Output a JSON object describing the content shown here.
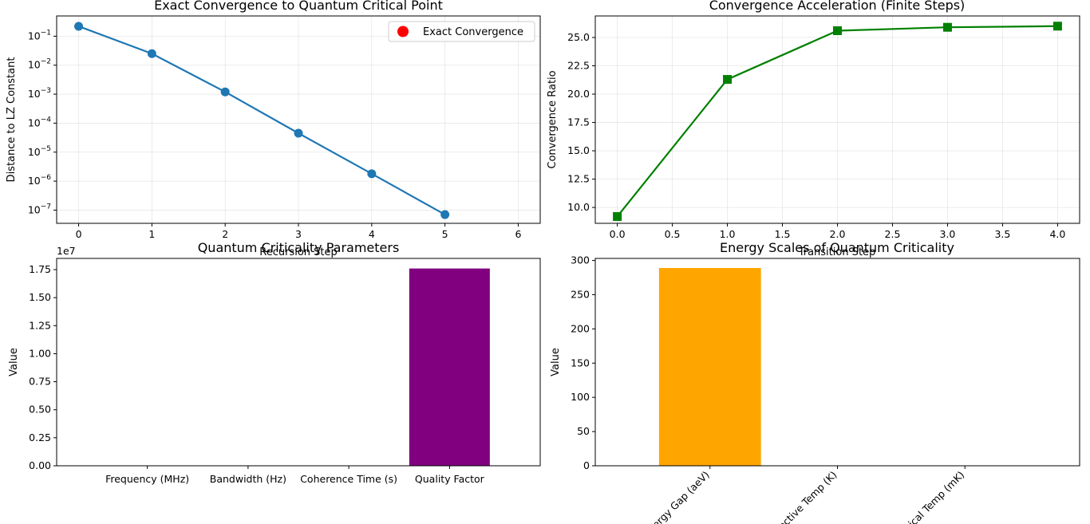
{
  "chart_data": [
    {
      "type": "line",
      "title": "Exact Convergence to Quantum Critical Point",
      "xlabel": "Recursion Step",
      "ylabel": "Distance to LZ Constant",
      "yscale": "log",
      "xlim": [
        -0.3,
        6.3
      ],
      "ylim": [
        3.5e-08,
        0.5
      ],
      "xticks": [
        0,
        1,
        2,
        3,
        4,
        5,
        6
      ],
      "yticks": [
        {
          "v": 1e-07,
          "e": "−7"
        },
        {
          "v": 1e-06,
          "e": "−6"
        },
        {
          "v": 1e-05,
          "e": "−5"
        },
        {
          "v": 0.0001,
          "e": "−4"
        },
        {
          "v": 0.001,
          "e": "−3"
        },
        {
          "v": 0.01,
          "e": "−2"
        },
        {
          "v": 0.1,
          "e": "−1"
        }
      ],
      "grid": true,
      "legend": {
        "placement": "upper right",
        "entries": [
          {
            "label": "Exact Convergence",
            "marker": "circle",
            "color": "#ff0000"
          }
        ]
      },
      "series": [
        {
          "color": "#1f77b4",
          "x": [
            0,
            1,
            2,
            3,
            4,
            5
          ],
          "y": [
            0.22,
            0.025,
            0.0012,
            4.5e-05,
            1.8e-06,
            7e-08
          ]
        }
      ]
    },
    {
      "type": "line",
      "title": "Convergence Acceleration (Finite Steps)",
      "xlabel": "Transition Step",
      "ylabel": "Convergence Ratio",
      "xlim": [
        -0.2,
        4.2
      ],
      "ylim": [
        8.6,
        26.9
      ],
      "xticks": [
        "0.0",
        "0.5",
        "1.0",
        "1.5",
        "2.0",
        "2.5",
        "3.0",
        "3.5",
        "4.0"
      ],
      "yticks": [
        "10.0",
        "12.5",
        "15.0",
        "17.5",
        "20.0",
        "22.5",
        "25.0"
      ],
      "grid": true,
      "series": [
        {
          "color": "#008000",
          "marker": "square",
          "x": [
            0,
            1,
            2,
            3,
            4
          ],
          "y": [
            9.2,
            21.3,
            25.6,
            25.9,
            26.0
          ]
        }
      ]
    },
    {
      "type": "bar",
      "title": "Quantum Criticality Parameters",
      "xlabel": "",
      "ylabel": "Value",
      "offset_label": "1e7",
      "categories": [
        "Frequency (MHz)",
        "Bandwidth (Hz)",
        "Coherence Time (s)",
        "Quality Factor"
      ],
      "values": [
        0,
        0,
        0,
        17600000
      ],
      "colors": [
        "#1f77b4",
        "#1f77b4",
        "#1f77b4",
        "#800080"
      ],
      "ylim": [
        0,
        18500000
      ],
      "yticks": [
        "0.00",
        "0.25",
        "0.50",
        "0.75",
        "1.00",
        "1.25",
        "1.50",
        "1.75"
      ]
    },
    {
      "type": "bar",
      "title": "Energy Scales of Quantum Criticality",
      "xlabel": "",
      "ylabel": "Value",
      "categories": [
        "Energy Gap (aeV)",
        "Effective Temp (K)",
        "Critical Temp (mK)"
      ],
      "values": [
        289,
        0,
        0
      ],
      "colors": [
        "#ffa500",
        "#1f77b4",
        "#1f77b4"
      ],
      "ylim": [
        0,
        303
      ],
      "yticks": [
        "0",
        "50",
        "100",
        "150",
        "200",
        "250",
        "300"
      ]
    }
  ]
}
